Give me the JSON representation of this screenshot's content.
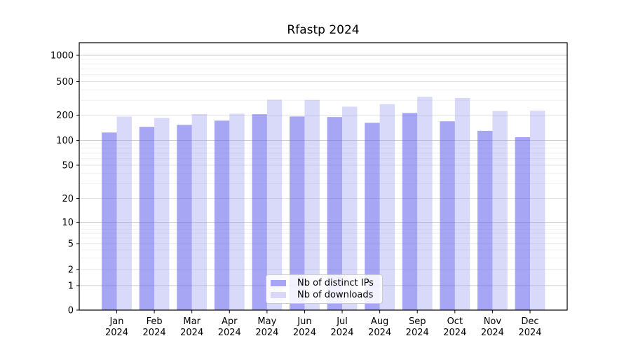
{
  "title": "Rfastp 2024",
  "legend": {
    "items": [
      {
        "label": "Nb of distinct IPs",
        "color": "#a6a6f4"
      },
      {
        "label": "Nb of downloads",
        "color": "#d9d9f7"
      }
    ]
  },
  "chart_data": {
    "type": "bar",
    "title": "Rfastp 2024",
    "categories": [
      "Jan 2024",
      "Feb 2024",
      "Mar 2024",
      "Apr 2024",
      "May 2024",
      "Jun 2024",
      "Jul 2024",
      "Aug 2024",
      "Sep 2024",
      "Oct 2024",
      "Nov 2024",
      "Dec 2024"
    ],
    "series": [
      {
        "name": "Nb of distinct IPs",
        "color": "#a6a6f4",
        "values": [
          124,
          145,
          153,
          172,
          205,
          193,
          190,
          162,
          212,
          169,
          130,
          109
        ]
      },
      {
        "name": "Nb of downloads",
        "color": "#d9d9f7",
        "values": [
          192,
          185,
          206,
          208,
          305,
          303,
          252,
          270,
          330,
          320,
          224,
          226
        ]
      }
    ],
    "xlabel": "",
    "ylabel": "",
    "yscale": "log",
    "yticks": [
      0,
      1,
      2,
      5,
      10,
      20,
      50,
      100,
      200,
      500,
      1000
    ],
    "ylim": [
      0,
      1500
    ],
    "grid": true,
    "legend_position": "bottom-center-inside"
  }
}
